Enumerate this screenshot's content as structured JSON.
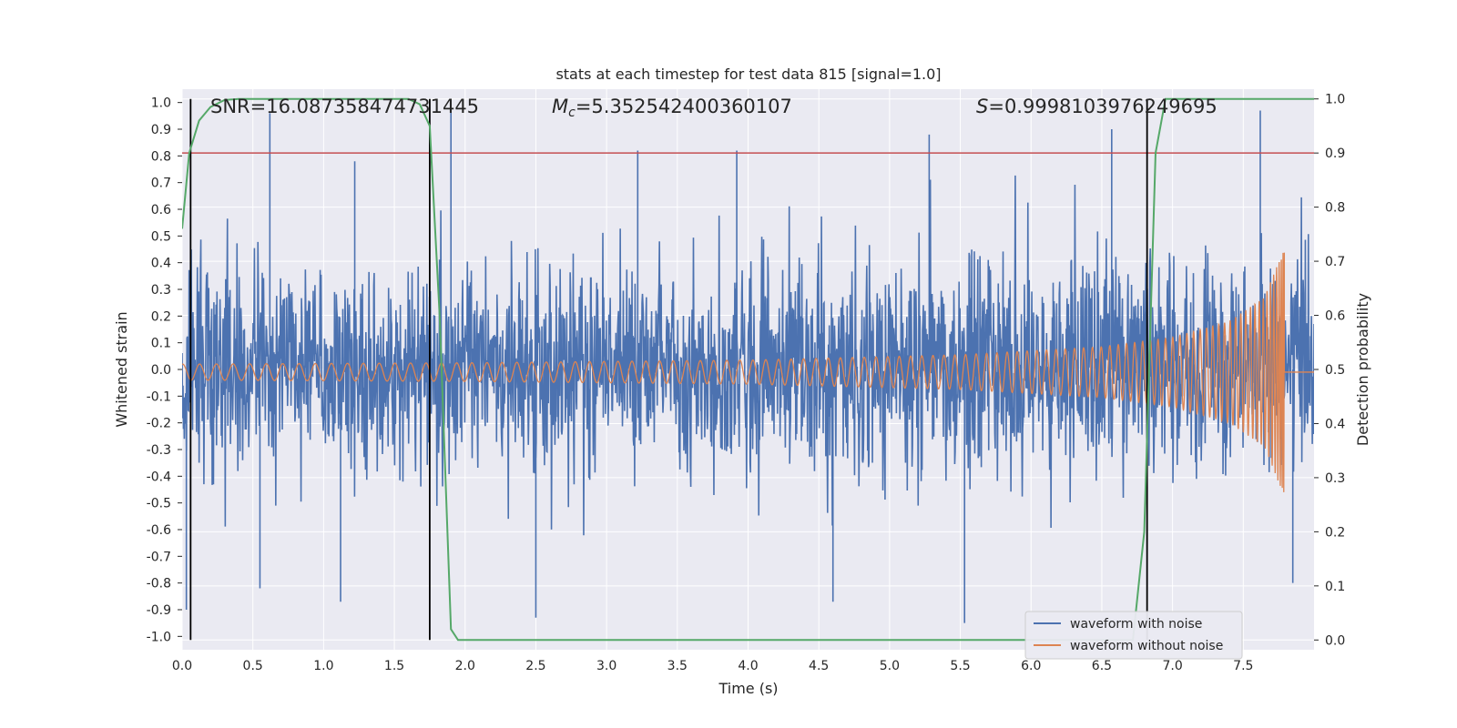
{
  "chart_data": {
    "type": "line",
    "title": "stats at each timestep for test data 815 [signal=1.0]",
    "xlabel": "Time (s)",
    "ylabel": "Whitened strain",
    "y2label": "Detection probability",
    "xlim": [
      0.0,
      8.0
    ],
    "ylim": [
      -1.05,
      1.05
    ],
    "y2lim": [
      -0.018,
      1.018
    ],
    "grid": true,
    "x_ticks": [
      "0.0",
      "0.5",
      "1.0",
      "1.5",
      "2.0",
      "2.5",
      "3.0",
      "3.5",
      "4.0",
      "4.5",
      "5.0",
      "5.5",
      "6.0",
      "6.5",
      "7.0",
      "7.5"
    ],
    "y_ticks": [
      "1.0",
      "0.9",
      "0.8",
      "0.7",
      "0.6",
      "0.5",
      "0.4",
      "0.3",
      "0.2",
      "0.1",
      "0.0",
      "-0.1",
      "-0.2",
      "-0.3",
      "-0.4",
      "-0.5",
      "-0.6",
      "-0.7",
      "-0.8",
      "-0.9",
      "-1.0"
    ],
    "y2_ticks": [
      "1.0",
      "0.9",
      "0.8",
      "0.7",
      "0.6",
      "0.5",
      "0.4",
      "0.3",
      "0.2",
      "0.1",
      "0.0"
    ],
    "annotations": {
      "snr": "SNR=16.087358474731445",
      "mc_symbol": "M",
      "mc_sub": "c",
      "mc_value": "=5.352542400360107",
      "s_symbol": "S",
      "s_value": "=0.9998103976249695"
    },
    "threshold": {
      "y2": 0.9,
      "color": "#c44e52"
    },
    "event_markers_x": [
      0.06,
      1.75,
      6.82
    ],
    "noise_series": {
      "name": "waveform with noise",
      "color": "#4c72b0",
      "typical_envelope": 0.4,
      "peaks": [
        {
          "x": 0.03,
          "y": -0.9
        },
        {
          "x": 0.62,
          "y": 0.96
        },
        {
          "x": 0.55,
          "y": -0.82
        },
        {
          "x": 1.22,
          "y": 0.78
        },
        {
          "x": 1.12,
          "y": -0.87
        },
        {
          "x": 1.9,
          "y": 1.0
        },
        {
          "x": 2.5,
          "y": -0.93
        },
        {
          "x": 3.22,
          "y": 0.82
        },
        {
          "x": 3.92,
          "y": 0.82
        },
        {
          "x": 4.6,
          "y": -0.87
        },
        {
          "x": 5.28,
          "y": 0.88
        },
        {
          "x": 5.53,
          "y": -0.95
        },
        {
          "x": 6.57,
          "y": 0.9
        },
        {
          "x": 7.62,
          "y": 0.97
        },
        {
          "x": 7.85,
          "y": -0.8
        }
      ]
    },
    "signal_series": {
      "name": "waveform without noise",
      "color": "#dd8452",
      "amplitude_points": [
        [
          0.0,
          0.03
        ],
        [
          2.0,
          0.035
        ],
        [
          4.0,
          0.045
        ],
        [
          5.5,
          0.065
        ],
        [
          6.5,
          0.095
        ],
        [
          7.0,
          0.13
        ],
        [
          7.4,
          0.19
        ],
        [
          7.65,
          0.28
        ],
        [
          7.74,
          0.4
        ],
        [
          7.78,
          0.45
        ]
      ],
      "merger_time": 7.79,
      "post_merger_value": -0.01
    },
    "probability_series": {
      "name": "detection probability",
      "color": "#55a868",
      "x": [
        0.0,
        0.05,
        0.12,
        0.2,
        0.3,
        0.4,
        1.6,
        1.68,
        1.75,
        1.82,
        1.9,
        1.95,
        2.0,
        6.72,
        6.8,
        6.88,
        6.95,
        8.0
      ],
      "y": [
        0.76,
        0.9,
        0.96,
        0.985,
        0.998,
        1.0,
        1.0,
        0.99,
        0.95,
        0.6,
        0.02,
        0.0,
        0.0,
        0.0,
        0.2,
        0.9,
        1.0,
        1.0
      ]
    },
    "legend": {
      "position": "lower-right",
      "entries": [
        {
          "label": "waveform with noise",
          "color": "#4c72b0"
        },
        {
          "label": "waveform without noise",
          "color": "#dd8452"
        }
      ]
    }
  }
}
